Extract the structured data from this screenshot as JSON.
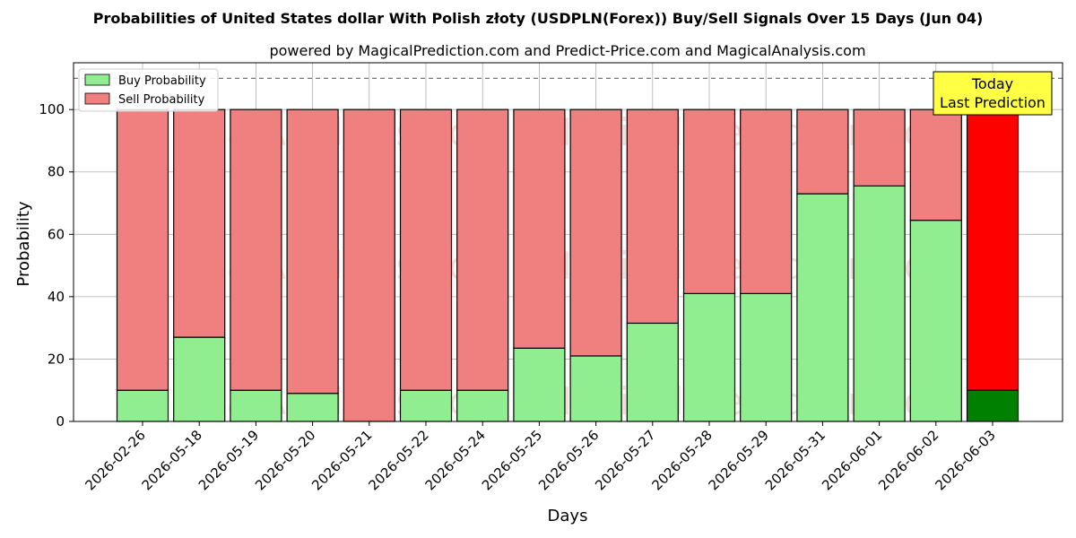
{
  "chart_data": {
    "type": "bar",
    "stacked": true,
    "title": "Probabilities of United States dollar With Polish złoty (USDPLN(Forex)) Buy/Sell Signals Over 15 Days (Jun 04)",
    "subtitle": "powered by MagicalPrediction.com and Predict-Price.com and MagicalAnalysis.com",
    "xlabel": "Days",
    "ylabel": "Probability",
    "ylim": [
      0,
      115
    ],
    "yticks": [
      0,
      20,
      40,
      60,
      80,
      100
    ],
    "grid": true,
    "legend_position": "top-left",
    "reference_line": 110,
    "categories": [
      "2026-02-26",
      "2026-05-18",
      "2026-05-19",
      "2026-05-20",
      "2026-05-21",
      "2026-05-22",
      "2026-05-24",
      "2026-05-25",
      "2026-05-26",
      "2026-05-27",
      "2026-05-28",
      "2026-05-29",
      "2026-05-31",
      "2026-06-01",
      "2026-06-02",
      "2026-06-03"
    ],
    "series": [
      {
        "name": "Buy Probability",
        "values": [
          10,
          27,
          10,
          9,
          0,
          10,
          10,
          23.5,
          21,
          31.5,
          41,
          41,
          73,
          75.5,
          64.5,
          10
        ]
      },
      {
        "name": "Sell Probability",
        "values": [
          90,
          73,
          90,
          91,
          100,
          90,
          90,
          76.5,
          79,
          68.5,
          59,
          59,
          27,
          24.5,
          35.5,
          90
        ]
      }
    ],
    "colors": {
      "buy": "#90ee90",
      "sell": "#f08080",
      "today_buy": "#008000",
      "today_sell": "#ff0000",
      "annotation_bg": "#ffff44"
    },
    "highlight_index": 15,
    "annotation": {
      "line1": "Today",
      "line2": "Last Prediction"
    },
    "watermarks": [
      "MagicalAnalysis.com",
      "MagicalPrediction.com"
    ]
  }
}
